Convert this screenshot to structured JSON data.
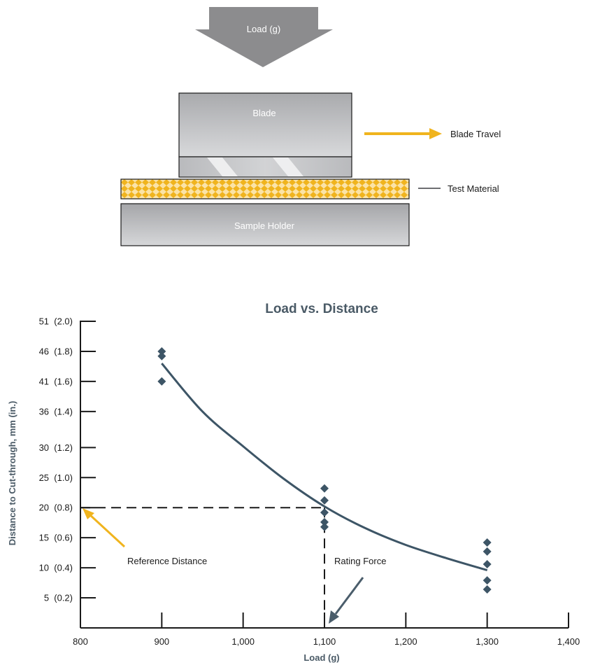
{
  "diagram": {
    "load_label": "Load (g)",
    "blade_label": "Blade",
    "blade_travel_label": "Blade Travel",
    "test_material_label": "Test Material",
    "sample_holder_label": "Sample Holder",
    "colors": {
      "arrow_gray": "#8c8c8e",
      "accent_yellow": "#f0b41e",
      "box_gray": "#b8b9bc"
    }
  },
  "chart_data": {
    "type": "scatter",
    "title": "Load vs. Distance",
    "xlabel": "Load (g)",
    "ylabel": "Distance to Cut-through, mm (in.)",
    "xlim": [
      800,
      1400
    ],
    "ylim": [
      0,
      51
    ],
    "x_ticks": [
      800,
      900,
      1000,
      1100,
      1200,
      1300,
      1400
    ],
    "x_tick_labels": [
      "800",
      "900",
      "1,000",
      "1,100",
      "1,200",
      "1,300",
      "1,400"
    ],
    "y_ticks": [
      5,
      10,
      15,
      20,
      25,
      30,
      36,
      41,
      46,
      51
    ],
    "y_tick_labels": [
      "5  (0.2)",
      "10  (0.4)",
      "15  (0.6)",
      "20  (0.8)",
      "25  (1.0)",
      "30  (1.2)",
      "36  (1.4)",
      "41  (1.6)",
      "46  (1.8)",
      "51  (2.0)"
    ],
    "points": [
      {
        "x": 900,
        "y": 46.0
      },
      {
        "x": 900,
        "y": 45.2
      },
      {
        "x": 900,
        "y": 41.0
      },
      {
        "x": 1100,
        "y": 23.2
      },
      {
        "x": 1100,
        "y": 21.2
      },
      {
        "x": 1100,
        "y": 19.2
      },
      {
        "x": 1100,
        "y": 17.6
      },
      {
        "x": 1100,
        "y": 16.8
      },
      {
        "x": 1300,
        "y": 14.2
      },
      {
        "x": 1300,
        "y": 12.7
      },
      {
        "x": 1300,
        "y": 10.6
      },
      {
        "x": 1300,
        "y": 7.9
      },
      {
        "x": 1300,
        "y": 6.4
      }
    ],
    "fit_curve": [
      {
        "x": 900,
        "y": 44.0
      },
      {
        "x": 950,
        "y": 36.0
      },
      {
        "x": 1000,
        "y": 30.2
      },
      {
        "x": 1050,
        "y": 24.8
      },
      {
        "x": 1100,
        "y": 20.2
      },
      {
        "x": 1150,
        "y": 16.6
      },
      {
        "x": 1200,
        "y": 13.8
      },
      {
        "x": 1250,
        "y": 11.6
      },
      {
        "x": 1300,
        "y": 9.6
      }
    ],
    "reference_distance": 20,
    "rating_force": 1100,
    "annotations": {
      "reference": "Reference Distance",
      "rating": "Rating Force"
    },
    "grid": false,
    "colors": {
      "series": "#3d5566",
      "axis": "#1a1a1a",
      "title": "#4a5a66",
      "accent": "#f0b41e",
      "pointer": "#4a5d6b"
    }
  }
}
